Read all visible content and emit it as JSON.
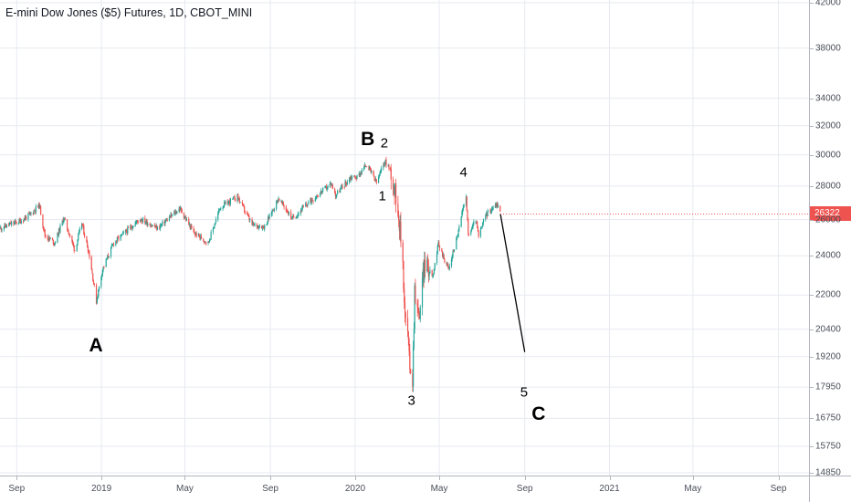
{
  "title": "E-mini Dow Jones ($5) Futures, 1D, CBOT_MINI",
  "colors": {
    "up": "#26a69a",
    "down": "#ef5350",
    "grid": "#e7eaf0",
    "text": "#131722",
    "projection": "#000000"
  },
  "last_price_label": "26322",
  "chart_data": {
    "type": "candlestick",
    "title": "E-mini Dow Jones ($5) Futures, 1D, CBOT_MINI",
    "y_scale": "log",
    "ylim": [
      14850,
      42000
    ],
    "xlim": [
      "2018-08-08",
      "2021-10-15"
    ],
    "grid": true,
    "price_ticks": [
      "42000",
      "38000",
      "34000",
      "32000",
      "30000",
      "28000",
      "26000",
      "24000",
      "22000",
      "20400",
      "19200",
      "17950",
      "16750",
      "15750",
      "14850"
    ],
    "time_ticks": [
      {
        "date": "2018-09-01",
        "label": "Sep"
      },
      {
        "date": "2019-01-01",
        "label": "2019"
      },
      {
        "date": "2019-05-01",
        "label": "May"
      },
      {
        "date": "2019-09-01",
        "label": "Sep"
      },
      {
        "date": "2020-01-01",
        "label": "2020"
      },
      {
        "date": "2020-05-01",
        "label": "May"
      },
      {
        "date": "2020-09-01",
        "label": "Sep"
      },
      {
        "date": "2021-01-01",
        "label": "2021"
      },
      {
        "date": "2021-05-01",
        "label": "May"
      },
      {
        "date": "2021-09-01",
        "label": "Sep"
      }
    ],
    "price_path": [
      [
        "2018-08-08",
        25500
      ],
      [
        "2018-08-20",
        25700
      ],
      [
        "2018-09-05",
        25900
      ],
      [
        "2018-09-20",
        26300
      ],
      [
        "2018-10-03",
        26850
      ],
      [
        "2018-10-11",
        25100
      ],
      [
        "2018-10-25",
        24700
      ],
      [
        "2018-11-07",
        26100
      ],
      [
        "2018-11-23",
        24300
      ],
      [
        "2018-12-03",
        25800
      ],
      [
        "2018-12-14",
        24050
      ],
      [
        "2018-12-24",
        21700
      ],
      [
        "2019-01-02",
        23300
      ],
      [
        "2019-01-18",
        24700
      ],
      [
        "2019-02-25",
        26050
      ],
      [
        "2019-03-22",
        25500
      ],
      [
        "2019-04-23",
        26650
      ],
      [
        "2019-05-13",
        25250
      ],
      [
        "2019-06-03",
        24700
      ],
      [
        "2019-06-20",
        26700
      ],
      [
        "2019-07-15",
        27350
      ],
      [
        "2019-08-05",
        25700
      ],
      [
        "2019-08-23",
        25600
      ],
      [
        "2019-09-12",
        27250
      ],
      [
        "2019-10-02",
        26050
      ],
      [
        "2019-10-28",
        27100
      ],
      [
        "2019-11-27",
        28150
      ],
      [
        "2019-12-03",
        27450
      ],
      [
        "2019-12-26",
        28600
      ],
      [
        "2020-01-03",
        28550
      ],
      [
        "2020-01-17",
        29400
      ],
      [
        "2020-01-31",
        28200
      ],
      [
        "2020-02-12",
        29600
      ],
      [
        "2020-02-21",
        28950
      ],
      [
        "2020-03-02",
        26700
      ],
      [
        "2020-03-09",
        23700
      ],
      [
        "2020-03-12",
        21000
      ],
      [
        "2020-03-16",
        20300
      ],
      [
        "2020-03-18",
        19100
      ],
      [
        "2020-03-23",
        18250
      ],
      [
        "2020-03-26",
        22300
      ],
      [
        "2020-04-01",
        20900
      ],
      [
        "2020-04-09",
        23600
      ],
      [
        "2020-04-21",
        23000
      ],
      [
        "2020-04-29",
        24600
      ],
      [
        "2020-05-14",
        23300
      ],
      [
        "2020-05-28",
        25350
      ],
      [
        "2020-06-08",
        27500
      ],
      [
        "2020-06-11",
        25100
      ],
      [
        "2020-06-22",
        26000
      ],
      [
        "2020-06-26",
        25000
      ],
      [
        "2020-07-06",
        26250
      ],
      [
        "2020-07-16",
        26700
      ],
      [
        "2020-07-23",
        26900
      ],
      [
        "2020-07-28",
        26322
      ]
    ],
    "projection": [
      [
        "2020-07-28",
        26322
      ],
      [
        "2020-09-01",
        19400
      ]
    ],
    "last_price": 26322,
    "annotations": [
      {
        "text": "A",
        "date": "2018-12-24",
        "price": 19650,
        "size": "major"
      },
      {
        "text": "B",
        "date": "2020-01-19",
        "price": 31000,
        "size": "major"
      },
      {
        "text": "2",
        "date": "2020-02-12",
        "price": 30800,
        "size": "minor"
      },
      {
        "text": "1",
        "date": "2020-02-09",
        "price": 27350,
        "size": "minor"
      },
      {
        "text": "4",
        "date": "2020-06-05",
        "price": 28850,
        "size": "minor"
      },
      {
        "text": "3",
        "date": "2020-03-22",
        "price": 17420,
        "size": "minor"
      },
      {
        "text": "5",
        "date": "2020-08-31",
        "price": 17720,
        "size": "minor"
      },
      {
        "text": "C",
        "date": "2020-09-21",
        "price": 16900,
        "size": "major"
      }
    ]
  }
}
